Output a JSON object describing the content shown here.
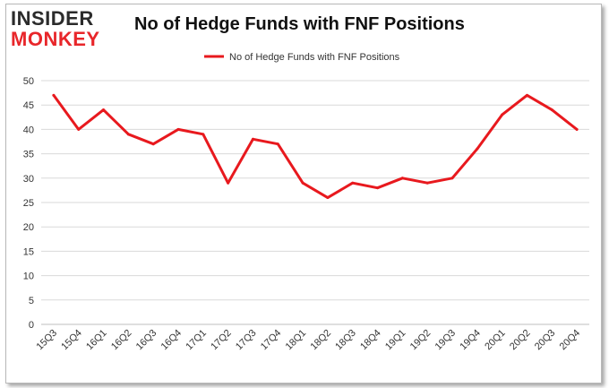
{
  "logo": {
    "line1": "INSIDER",
    "line2": "MONKEY"
  },
  "chart_data": {
    "type": "line",
    "title": "No of Hedge Funds with FNF Positions",
    "categories": [
      "15Q3",
      "15Q4",
      "16Q1",
      "16Q2",
      "16Q3",
      "16Q4",
      "17Q1",
      "17Q2",
      "17Q3",
      "17Q4",
      "18Q1",
      "18Q2",
      "18Q3",
      "18Q4",
      "19Q1",
      "19Q2",
      "19Q3",
      "19Q4",
      "20Q1",
      "20Q2",
      "20Q3",
      "20Q4"
    ],
    "series": [
      {
        "name": "No of Hedge Funds with FNF Positions",
        "values": [
          47,
          40,
          44,
          39,
          37,
          40,
          39,
          29,
          38,
          37,
          29,
          26,
          29,
          28,
          30,
          29,
          30,
          36,
          43,
          47,
          44,
          40
        ]
      }
    ],
    "ylim": [
      0,
      50
    ],
    "yticks": [
      0,
      5,
      10,
      15,
      20,
      25,
      30,
      35,
      40,
      45,
      50
    ],
    "grid": true,
    "legend": "top-center",
    "colors": {
      "line": "#e8191e",
      "grid": "#d9d9d9"
    }
  }
}
